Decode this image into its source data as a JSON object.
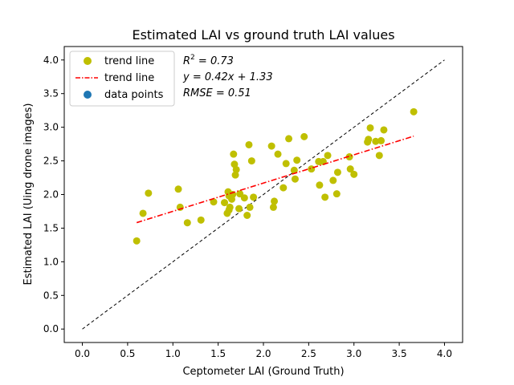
{
  "chart_data": {
    "type": "scatter",
    "title": "Estimated LAI vs ground truth LAI values",
    "xlabel": "Ceptometer LAI (Ground Truth)",
    "ylabel": "Estimated LAI (Uing drone images)",
    "xlim": [
      -0.2,
      4.2
    ],
    "ylim": [
      -0.2,
      4.2
    ],
    "xticks": [
      "0.0",
      "0.5",
      "1.0",
      "1.5",
      "2.0",
      "2.5",
      "3.0",
      "3.5",
      "4.0"
    ],
    "yticks": [
      "0.0",
      "0.5",
      "1.0",
      "1.5",
      "2.0",
      "2.5",
      "3.0",
      "3.5",
      "4.0"
    ],
    "grid": false,
    "legend_position": "top-left",
    "legend": [
      {
        "label": "trend line",
        "marker": "circle",
        "color": "#bfbf00"
      },
      {
        "label": "trend line",
        "marker": "dashdot-line",
        "color": "#ff0000"
      },
      {
        "label": "data points",
        "marker": "circle",
        "color": "#1f77b4"
      }
    ],
    "annotations": {
      "r2_prefix": "R",
      "r2_sup": "2",
      "r2_value": " = 0.73",
      "equation": "y = 0.42x + 1.33",
      "rmse": "RMSE = 0.51"
    },
    "series": [
      {
        "marker_color": "#bfbf00",
        "points": [
          [
            0.6,
            1.31
          ],
          [
            0.67,
            1.72
          ],
          [
            0.73,
            2.02
          ],
          [
            1.06,
            2.08
          ],
          [
            1.08,
            1.81
          ],
          [
            1.16,
            1.58
          ],
          [
            1.31,
            1.62
          ],
          [
            1.45,
            1.89
          ],
          [
            1.57,
            1.88
          ],
          [
            1.6,
            1.72
          ],
          [
            1.61,
            2.04
          ],
          [
            1.62,
            1.98
          ],
          [
            1.62,
            1.77
          ],
          [
            1.63,
            1.81
          ],
          [
            1.65,
            1.93
          ],
          [
            1.66,
            2.0
          ],
          [
            1.67,
            2.6
          ],
          [
            1.68,
            2.45
          ],
          [
            1.69,
            2.29
          ],
          [
            1.7,
            2.37
          ],
          [
            1.73,
            1.79
          ],
          [
            1.74,
            2.01
          ],
          [
            1.79,
            1.95
          ],
          [
            1.82,
            1.69
          ],
          [
            1.84,
            2.74
          ],
          [
            1.85,
            1.81
          ],
          [
            1.87,
            2.5
          ],
          [
            1.89,
            1.96
          ],
          [
            2.09,
            2.72
          ],
          [
            2.11,
            1.81
          ],
          [
            2.12,
            1.9
          ],
          [
            2.16,
            2.6
          ],
          [
            2.22,
            2.1
          ],
          [
            2.25,
            2.46
          ],
          [
            2.28,
            2.83
          ],
          [
            2.34,
            2.36
          ],
          [
            2.35,
            2.23
          ],
          [
            2.37,
            2.51
          ],
          [
            2.45,
            2.86
          ],
          [
            2.53,
            2.38
          ],
          [
            2.61,
            2.49
          ],
          [
            2.62,
            2.14
          ],
          [
            2.66,
            2.49
          ],
          [
            2.68,
            1.96
          ],
          [
            2.71,
            2.58
          ],
          [
            2.77,
            2.21
          ],
          [
            2.81,
            2.01
          ],
          [
            2.82,
            2.33
          ],
          [
            2.95,
            2.56
          ],
          [
            2.96,
            2.38
          ],
          [
            3.0,
            2.3
          ],
          [
            3.15,
            2.78
          ],
          [
            3.16,
            2.82
          ],
          [
            3.18,
            2.99
          ],
          [
            3.24,
            2.79
          ],
          [
            3.28,
            2.58
          ],
          [
            3.3,
            2.8
          ],
          [
            3.33,
            2.96
          ],
          [
            3.66,
            3.23
          ]
        ]
      },
      {
        "style": "dashdot",
        "color": "#ff0000",
        "slope": 0.42,
        "intercept": 1.33,
        "x_range": [
          0.6,
          3.66
        ]
      },
      {
        "style": "dashed",
        "color": "#000000",
        "x": [
          0.0,
          4.0
        ],
        "y": [
          0.0,
          4.0
        ]
      }
    ]
  }
}
